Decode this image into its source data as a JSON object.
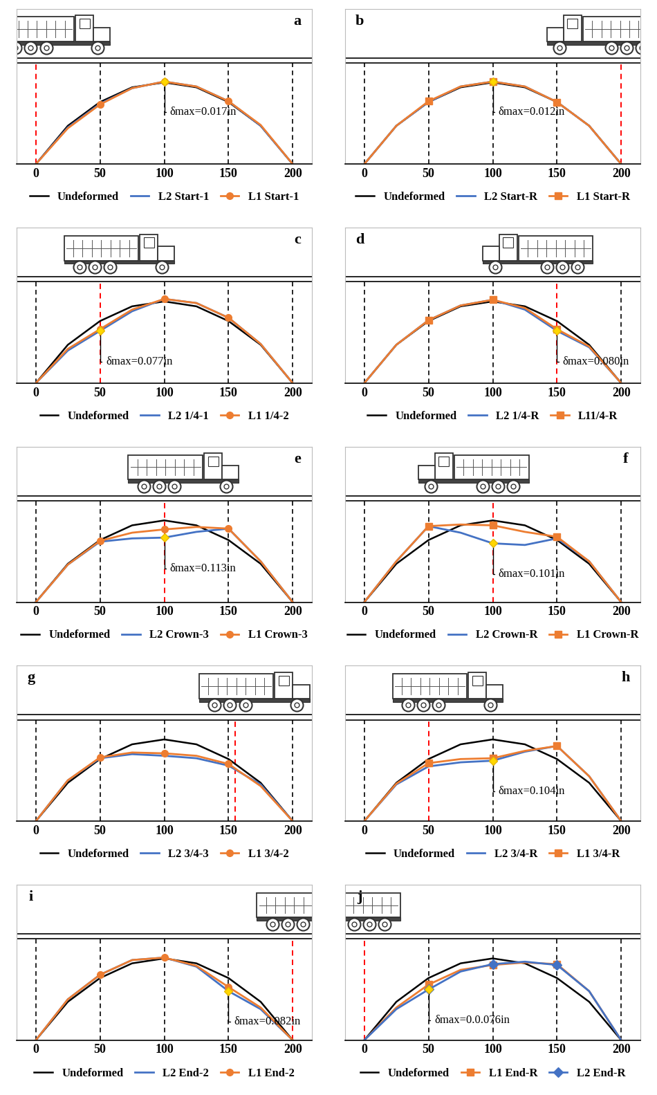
{
  "chart_data": [
    {
      "type": "line",
      "label": "a",
      "xlim": [
        -15,
        215
      ],
      "xticks": [
        0,
        50,
        100,
        150,
        200
      ],
      "ylim": [
        0,
        1.9
      ],
      "tick_labels": "x",
      "legend": "bottom",
      "load_x": 0,
      "sections": [
        0,
        50,
        100,
        150,
        200
      ],
      "x": [
        0,
        25,
        50,
        75,
        100,
        125,
        150,
        175,
        200
      ],
      "series": [
        {
          "name": "Undeformed",
          "color": "#000000",
          "values": [
            0,
            0.47,
            0.76,
            0.94,
            1.0,
            0.94,
            0.76,
            0.47,
            0
          ]
        },
        {
          "name": "L2 Start-1",
          "color": "#4472c4",
          "values": [
            0,
            0.45,
            0.74,
            0.93,
            1.01,
            0.95,
            0.77,
            0.47,
            0
          ]
        },
        {
          "name": "L1 Start-1",
          "color": "#ed7d31",
          "marker": "circle",
          "values": [
            0,
            0.44,
            0.73,
            0.93,
            1.01,
            0.95,
            0.77,
            0.48,
            0
          ]
        }
      ],
      "annotation": {
        "text": "δmax=0.017in",
        "x": 100,
        "series": "L2 Start-1"
      }
    },
    {
      "type": "line",
      "label": "b",
      "xlim": [
        -15,
        215
      ],
      "xticks": [
        0,
        50,
        100,
        150,
        200
      ],
      "ylim": [
        0,
        1.9
      ],
      "tick_labels": "x",
      "legend": "bottom",
      "load_x": 200,
      "sections": [
        0,
        50,
        100,
        150,
        200
      ],
      "x": [
        0,
        25,
        50,
        75,
        100,
        125,
        150,
        175,
        200
      ],
      "series": [
        {
          "name": "Undeformed",
          "color": "#000000",
          "values": [
            0,
            0.47,
            0.76,
            0.94,
            1.0,
            0.94,
            0.76,
            0.47,
            0
          ]
        },
        {
          "name": "L2 Start-R",
          "color": "#4472c4",
          "values": [
            0,
            0.47,
            0.76,
            0.95,
            1.01,
            0.95,
            0.76,
            0.47,
            0
          ]
        },
        {
          "name": "L1 Start-R",
          "color": "#ed7d31",
          "marker": "square",
          "values": [
            0,
            0.47,
            0.77,
            0.95,
            1.01,
            0.95,
            0.76,
            0.47,
            0
          ]
        }
      ],
      "annotation": {
        "text": "δmax=0.012in",
        "x": 100,
        "series": "L2 Start-R"
      }
    },
    {
      "type": "line",
      "label": "c",
      "xlim": [
        -15,
        215
      ],
      "xticks": [
        0,
        50,
        100,
        150,
        200
      ],
      "ylim": [
        0,
        1.9
      ],
      "tick_labels": "x",
      "legend": "bottom",
      "load_x": 50,
      "sections": [
        0,
        50,
        100,
        150,
        200
      ],
      "x": [
        0,
        25,
        50,
        75,
        100,
        125,
        150,
        175,
        200
      ],
      "series": [
        {
          "name": "Undeformed",
          "color": "#000000",
          "values": [
            0,
            0.47,
            0.76,
            0.94,
            1.0,
            0.94,
            0.76,
            0.47,
            0
          ]
        },
        {
          "name": "L2 1/4-1",
          "color": "#4472c4",
          "values": [
            0,
            0.4,
            0.64,
            0.88,
            1.03,
            0.98,
            0.8,
            0.48,
            0
          ]
        },
        {
          "name": "L1 1/4-2",
          "color": "#ed7d31",
          "marker": "circle",
          "values": [
            0,
            0.42,
            0.66,
            0.9,
            1.03,
            0.98,
            0.8,
            0.48,
            0
          ]
        }
      ],
      "annotation": {
        "text": "δmax=0.077in",
        "x": 50,
        "series": "L2 1/4-1"
      }
    },
    {
      "type": "line",
      "label": "d",
      "xlim": [
        -15,
        215
      ],
      "xticks": [
        0,
        50,
        100,
        150,
        200
      ],
      "ylim": [
        0,
        1.9
      ],
      "tick_labels": "x",
      "legend": "bottom",
      "load_x": 150,
      "sections": [
        0,
        50,
        100,
        150,
        200
      ],
      "x": [
        0,
        25,
        50,
        75,
        100,
        125,
        150,
        175,
        200
      ],
      "series": [
        {
          "name": "Undeformed",
          "color": "#000000",
          "values": [
            0,
            0.47,
            0.76,
            0.94,
            1.0,
            0.94,
            0.76,
            0.47,
            0
          ]
        },
        {
          "name": "L2 1/4-R",
          "color": "#4472c4",
          "values": [
            0,
            0.47,
            0.77,
            0.95,
            1.02,
            0.9,
            0.64,
            0.44,
            0
          ]
        },
        {
          "name": "L11/4-R",
          "color": "#ed7d31",
          "marker": "square",
          "values": [
            0,
            0.47,
            0.77,
            0.95,
            1.02,
            0.92,
            0.66,
            0.45,
            0
          ]
        }
      ],
      "annotation": {
        "text": "δmax=0.080in",
        "x": 150,
        "series": "L2 1/4-R"
      }
    },
    {
      "type": "line",
      "label": "e",
      "xlim": [
        -15,
        215
      ],
      "xticks": [
        0,
        50,
        100,
        150,
        200
      ],
      "ylim": [
        0,
        1.9
      ],
      "tick_labels": "x",
      "legend": "bottom",
      "load_x": 100,
      "sections": [
        0,
        50,
        100,
        150,
        200
      ],
      "x": [
        0,
        25,
        50,
        75,
        100,
        125,
        150,
        175,
        200
      ],
      "series": [
        {
          "name": "Undeformed",
          "color": "#000000",
          "values": [
            0,
            0.47,
            0.76,
            0.94,
            1.0,
            0.94,
            0.76,
            0.47,
            0
          ]
        },
        {
          "name": "L2 Crown-3",
          "color": "#4472c4",
          "values": [
            0,
            0.46,
            0.74,
            0.78,
            0.79,
            0.86,
            0.9,
            0.5,
            0
          ]
        },
        {
          "name": "L1 Crown-3",
          "color": "#ed7d31",
          "marker": "circle",
          "values": [
            0,
            0.46,
            0.75,
            0.85,
            0.89,
            0.92,
            0.9,
            0.5,
            0
          ]
        }
      ],
      "annotation": {
        "text": "δmax=0.113in",
        "x": 100,
        "series": "L2 Crown-3"
      }
    },
    {
      "type": "line",
      "label": "f",
      "xlim": [
        -15,
        215
      ],
      "xticks": [
        0,
        50,
        100,
        150,
        200
      ],
      "ylim": [
        0,
        1.9
      ],
      "tick_labels": "x",
      "legend": "bottom",
      "load_x": 100,
      "sections": [
        0,
        50,
        100,
        150,
        200
      ],
      "x": [
        0,
        25,
        50,
        75,
        100,
        125,
        150,
        175,
        200
      ],
      "series": [
        {
          "name": "Undeformed",
          "color": "#000000",
          "values": [
            0,
            0.47,
            0.76,
            0.94,
            1.0,
            0.94,
            0.76,
            0.47,
            0
          ]
        },
        {
          "name": "L2 Crown-R",
          "color": "#4472c4",
          "values": [
            0,
            0.5,
            0.93,
            0.85,
            0.72,
            0.7,
            0.78,
            0.5,
            0
          ]
        },
        {
          "name": "L1 Crown-R",
          "color": "#ed7d31",
          "marker": "square",
          "values": [
            0,
            0.5,
            0.93,
            0.95,
            0.94,
            0.86,
            0.8,
            0.5,
            0
          ]
        }
      ],
      "annotation": {
        "text": "δmax=0.101in",
        "x": 100,
        "series": "L2 Crown-R"
      }
    },
    {
      "type": "line",
      "label": "g",
      "xlim": [
        -15,
        215
      ],
      "xticks": [
        0,
        50,
        100,
        150,
        200
      ],
      "ylim": [
        0,
        1.9
      ],
      "tick_labels": "x",
      "legend": "bottom",
      "load_x": 155,
      "sections": [
        0,
        50,
        100,
        150,
        200
      ],
      "x": [
        0,
        25,
        50,
        75,
        100,
        125,
        150,
        175,
        200
      ],
      "series": [
        {
          "name": "Undeformed",
          "color": "#000000",
          "values": [
            0,
            0.47,
            0.76,
            0.94,
            1.0,
            0.94,
            0.76,
            0.47,
            0
          ]
        },
        {
          "name": "L2 3/4-3",
          "color": "#4472c4",
          "values": [
            0,
            0.5,
            0.77,
            0.82,
            0.8,
            0.77,
            0.68,
            0.45,
            0
          ]
        },
        {
          "name": "L1 3/4-2",
          "color": "#ed7d31",
          "marker": "circle",
          "values": [
            0,
            0.5,
            0.78,
            0.84,
            0.83,
            0.8,
            0.7,
            0.43,
            0
          ]
        }
      ]
    },
    {
      "type": "line",
      "label": "h",
      "xlim": [
        -15,
        215
      ],
      "xticks": [
        0,
        50,
        100,
        150,
        200
      ],
      "ylim": [
        0,
        1.9
      ],
      "tick_labels": "x",
      "legend": "bottom",
      "load_x": 50,
      "sections": [
        0,
        50,
        100,
        150,
        200
      ],
      "x": [
        0,
        25,
        50,
        75,
        100,
        125,
        150,
        175,
        200
      ],
      "series": [
        {
          "name": "Undeformed",
          "color": "#000000",
          "values": [
            0,
            0.47,
            0.76,
            0.94,
            1.0,
            0.94,
            0.76,
            0.47,
            0
          ]
        },
        {
          "name": "L2 3/4-R",
          "color": "#4472c4",
          "values": [
            0,
            0.45,
            0.67,
            0.72,
            0.74,
            0.85,
            0.92,
            0.55,
            0
          ]
        },
        {
          "name": "L1 3/4-R",
          "color": "#ed7d31",
          "marker": "square",
          "values": [
            0,
            0.46,
            0.71,
            0.76,
            0.77,
            0.86,
            0.92,
            0.55,
            0
          ]
        }
      ],
      "annotation": {
        "text": "δmax=0.104in",
        "x": 100,
        "series": "L2 3/4-R"
      }
    },
    {
      "type": "line",
      "label": "i",
      "xlim": [
        -15,
        215
      ],
      "xticks": [
        0,
        50,
        100,
        150,
        200
      ],
      "ylim": [
        0,
        1.9
      ],
      "tick_labels": "x",
      "legend": "bottom",
      "load_x": 200,
      "sections": [
        0,
        50,
        100,
        150,
        200
      ],
      "x": [
        0,
        25,
        50,
        75,
        100,
        125,
        150,
        175,
        200
      ],
      "series": [
        {
          "name": "Undeformed",
          "color": "#000000",
          "values": [
            0,
            0.47,
            0.76,
            0.94,
            1.0,
            0.94,
            0.76,
            0.47,
            0
          ]
        },
        {
          "name": "L2 End-2",
          "color": "#4472c4",
          "values": [
            0,
            0.5,
            0.8,
            0.98,
            1.01,
            0.9,
            0.6,
            0.38,
            0
          ]
        },
        {
          "name": "L1 End-2",
          "color": "#ed7d31",
          "marker": "circle",
          "values": [
            0,
            0.5,
            0.8,
            0.98,
            1.01,
            0.91,
            0.65,
            0.4,
            0
          ]
        }
      ],
      "annotation": {
        "text": "δmax=0.082in",
        "x": 150,
        "series": "L2 End-2"
      }
    },
    {
      "type": "line",
      "label": "j",
      "xlim": [
        -15,
        215
      ],
      "xticks": [
        0,
        50,
        100,
        150,
        200
      ],
      "ylim": [
        0,
        1.9
      ],
      "tick_labels": "x",
      "legend": "bottom",
      "load_x": 0,
      "sections": [
        0,
        50,
        100,
        150,
        200
      ],
      "x": [
        0,
        25,
        50,
        75,
        100,
        125,
        150,
        175,
        200
      ],
      "series": [
        {
          "name": "Undeformed",
          "color": "#000000",
          "values": [
            0,
            0.47,
            0.76,
            0.94,
            1.0,
            0.94,
            0.76,
            0.47,
            0
          ]
        },
        {
          "name": "L1 End-R",
          "color": "#ed7d31",
          "marker": "square",
          "values": [
            0,
            0.4,
            0.68,
            0.86,
            0.92,
            0.95,
            0.93,
            0.6,
            0
          ]
        },
        {
          "name": "L2 End-R",
          "color": "#4472c4",
          "marker": "diamond",
          "values": [
            0,
            0.38,
            0.62,
            0.84,
            0.93,
            0.96,
            0.92,
            0.6,
            0
          ]
        }
      ],
      "annotation": {
        "text": "δmax=0.0.076in",
        "x": 50,
        "series": "L2 End-R"
      }
    }
  ]
}
